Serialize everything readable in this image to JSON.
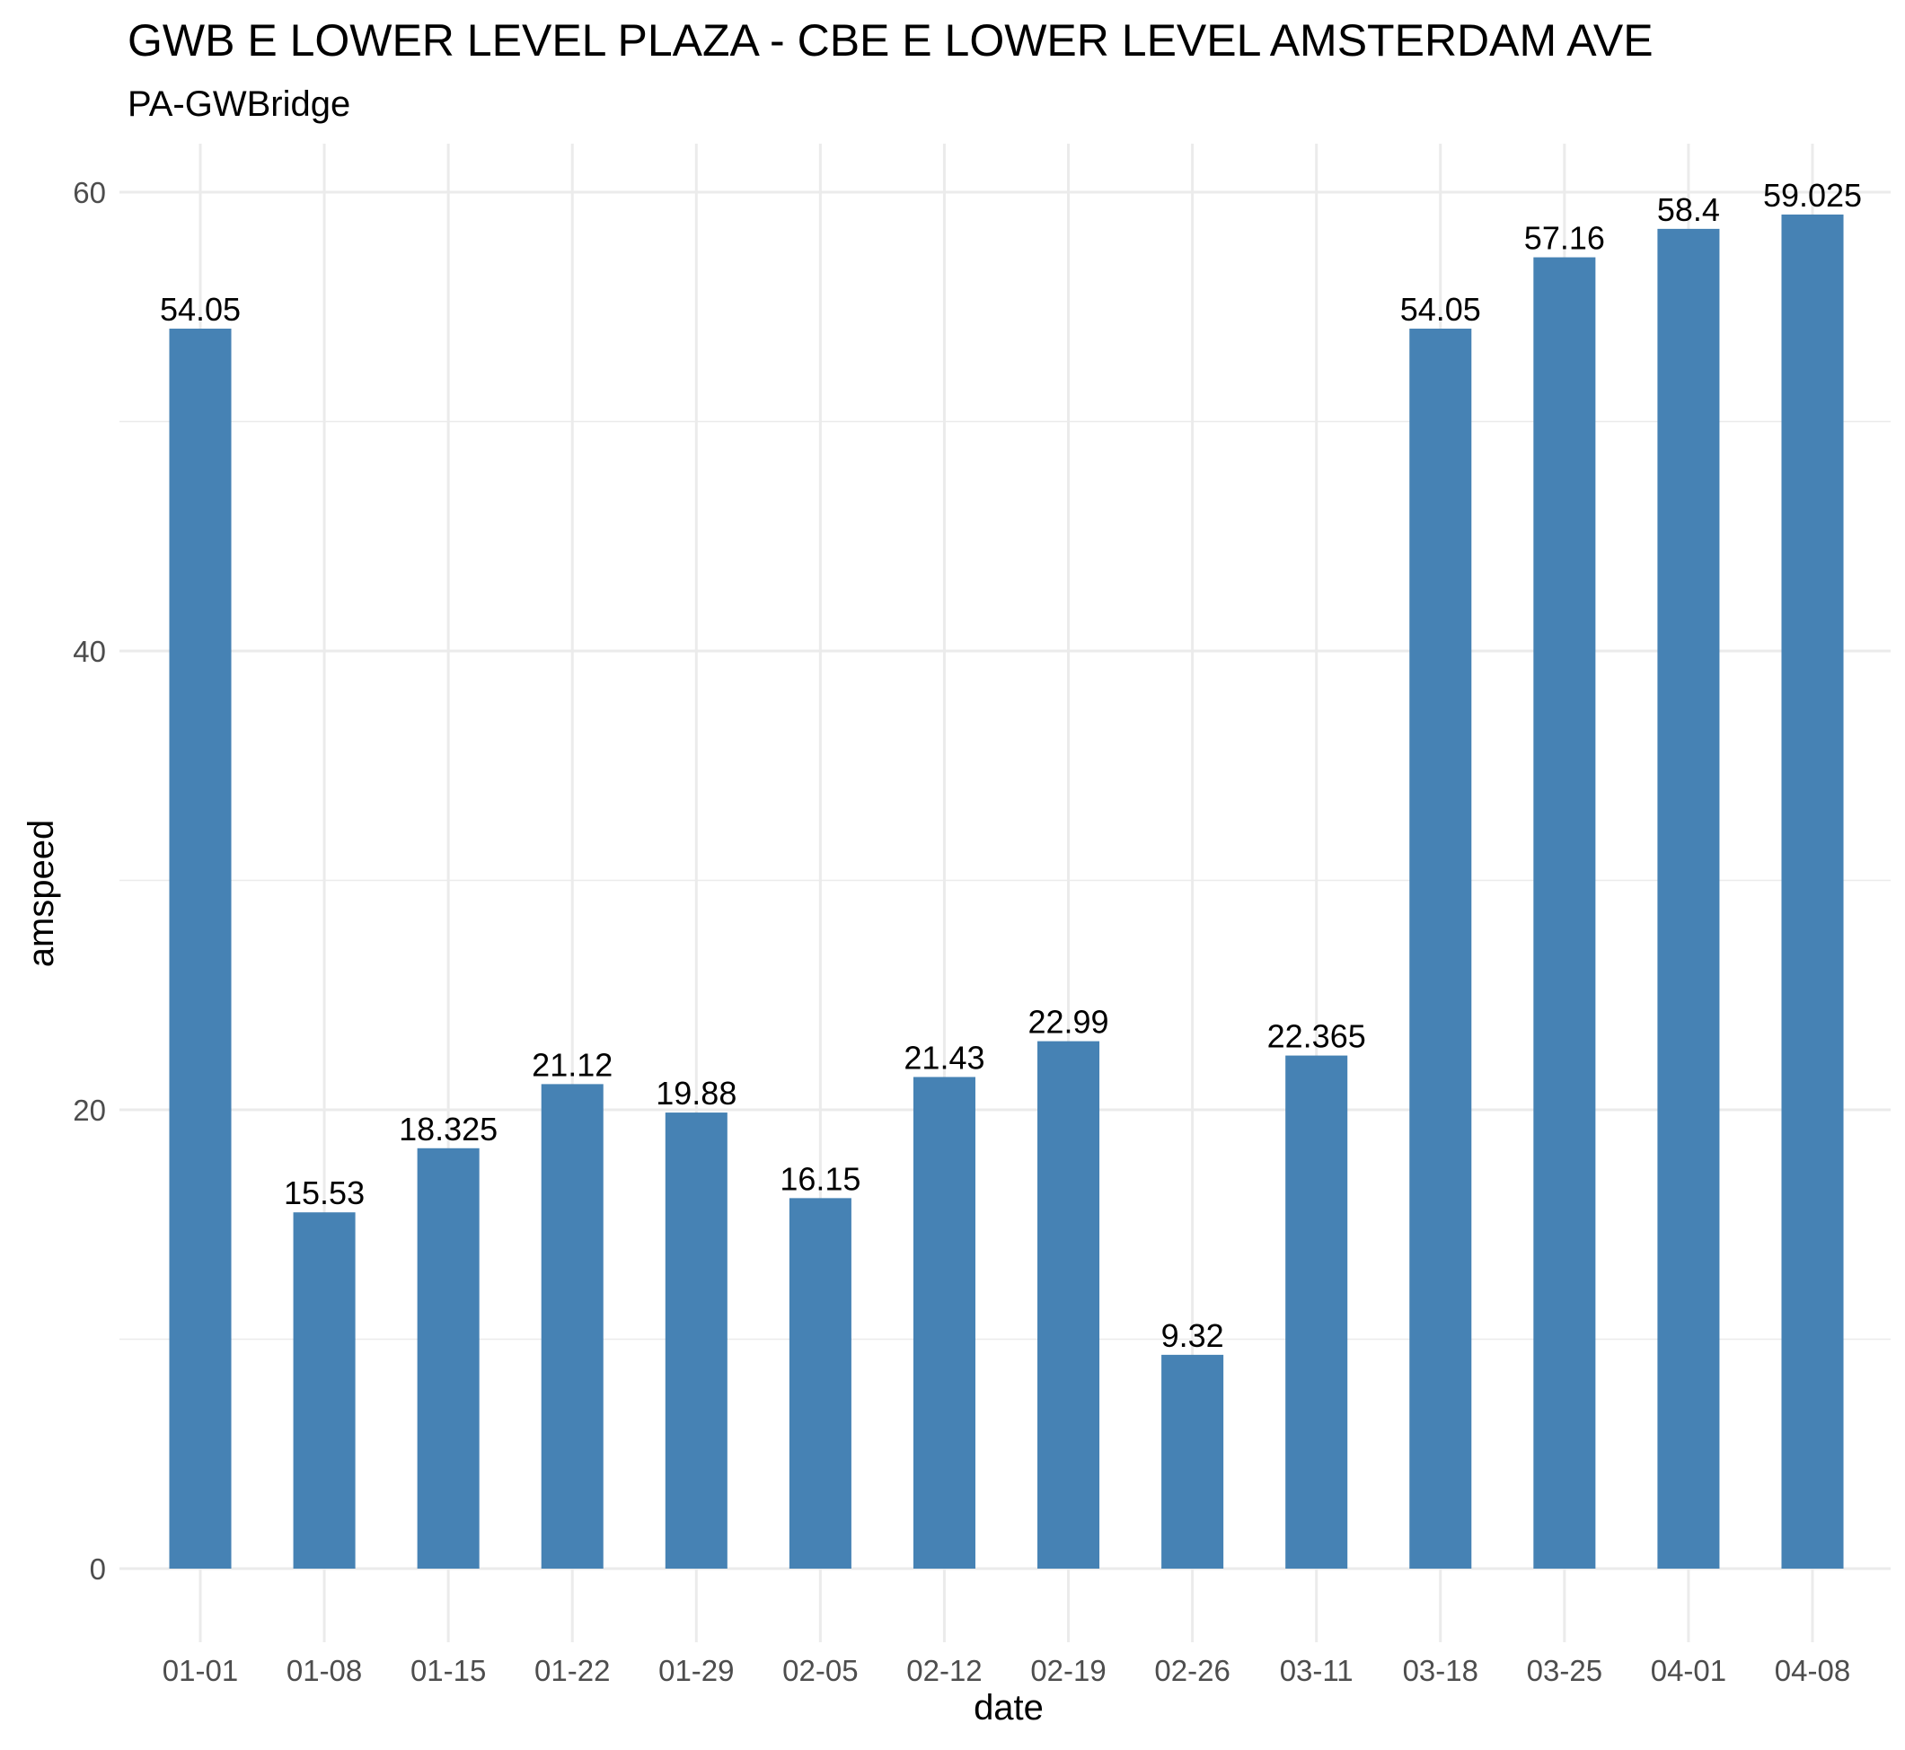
{
  "chart_data": {
    "type": "bar",
    "title": "GWB E LOWER LEVEL PLAZA - CBE E LOWER LEVEL AMSTERDAM AVE",
    "subtitle": "PA-GWBridge",
    "xlabel": "date",
    "ylabel": "amspeed",
    "categories": [
      "01-01",
      "01-08",
      "01-15",
      "01-22",
      "01-29",
      "02-05",
      "02-12",
      "02-19",
      "02-26",
      "03-11",
      "03-18",
      "03-25",
      "04-01",
      "04-08"
    ],
    "values": [
      54.05,
      15.53,
      18.325,
      21.12,
      19.88,
      16.15,
      21.43,
      22.99,
      9.32,
      22.365,
      54.05,
      57.16,
      58.4,
      59.025
    ],
    "data_labels": [
      "54.05",
      "15.53",
      "18.325",
      "21.12",
      "19.88",
      "16.15",
      "21.43",
      "22.99",
      "9.32",
      "22.365",
      "54.05",
      "57.16",
      "58.4",
      "59.025"
    ],
    "ylim": [
      0,
      62
    ],
    "yticks": [
      0,
      20,
      40,
      60
    ],
    "grid": true,
    "legend": "none",
    "colors": {
      "bar": "#4682b4",
      "grid": "#ebebeb",
      "background": "#ffffff",
      "tick_text": "#4d4d4d",
      "text": "#000000"
    }
  }
}
